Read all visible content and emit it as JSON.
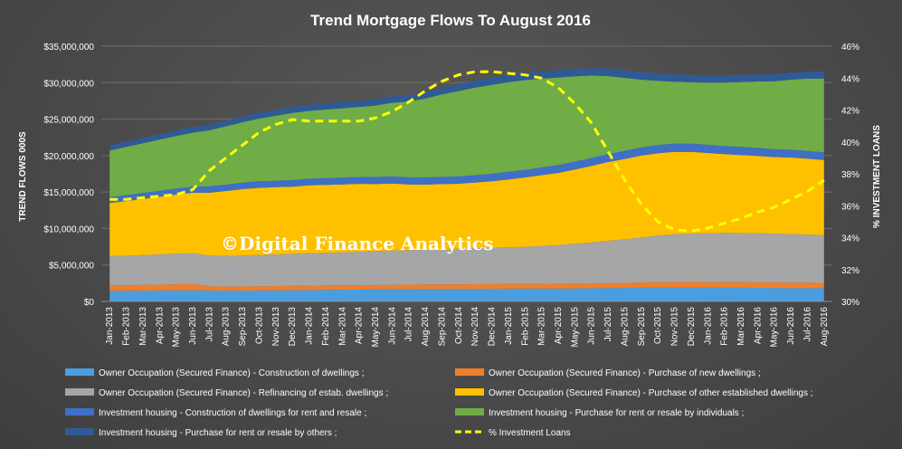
{
  "chart_data": {
    "type": "area",
    "title": "Trend Mortgage Flows To August 2016",
    "ylabel": "TREND FLOWS 000S",
    "ylabel_right": "% INVESTMENT LOANS",
    "ylim": [
      0,
      35000000
    ],
    "ylim_right": [
      30,
      46
    ],
    "yticks_left": [
      "$0",
      "$5,000,000",
      "$10,000,000",
      "$15,000,000",
      "$20,000,000",
      "$25,000,000",
      "$30,000,000",
      "$35,000,000"
    ],
    "yticks_right": [
      "30%",
      "32%",
      "34%",
      "36%",
      "38%",
      "40%",
      "42%",
      "44%",
      "46%"
    ],
    "stacked": true,
    "grid": true,
    "legend_position": "bottom",
    "watermark": "©Digital Finance Analytics",
    "categories": [
      "Jan-2013",
      "Feb-2013",
      "Mar-2013",
      "Apr-2013",
      "May-2013",
      "Jun-2013",
      "Jul-2013",
      "Aug-2013",
      "Sep-2013",
      "Oct-2013",
      "Nov-2013",
      "Dec-2013",
      "Jan-2014",
      "Feb-2014",
      "Mar-2014",
      "Apr-2014",
      "May-2014",
      "Jun-2014",
      "Jul-2014",
      "Aug-2014",
      "Sep-2014",
      "Oct-2014",
      "Nov-2014",
      "Dec-2014",
      "Jan-2015",
      "Feb-2015",
      "Mar-2015",
      "Apr-2015",
      "May-2015",
      "Jun-2015",
      "Jul-2015",
      "Aug-2015",
      "Sep-2015",
      "Oct-2015",
      "Nov-2015",
      "Dec-2015",
      "Jan-2016",
      "Feb-2016",
      "Mar-2016",
      "Apr-2016",
      "May-2016",
      "Jun-2016",
      "Jul-2016",
      "Aug-2016"
    ],
    "series": [
      {
        "name": "Owner Occupation (Secured Finance) - Construction of dwellings ;",
        "color": "#4a9ee0",
        "values": [
          1450000,
          1460000,
          1480000,
          1500000,
          1520000,
          1540000,
          1500000,
          1480000,
          1480000,
          1500000,
          1520000,
          1540000,
          1560000,
          1580000,
          1600000,
          1620000,
          1640000,
          1660000,
          1680000,
          1700000,
          1710000,
          1720000,
          1730000,
          1740000,
          1750000,
          1760000,
          1770000,
          1780000,
          1790000,
          1810000,
          1830000,
          1850000,
          1870000,
          1890000,
          1900000,
          1900000,
          1890000,
          1880000,
          1870000,
          1860000,
          1850000,
          1840000,
          1830000,
          1820000
        ]
      },
      {
        "name": "Owner Occupation (Secured Finance) - Purchase of new dwellings ;",
        "color": "#f07f2a",
        "values": [
          750000,
          760000,
          780000,
          800000,
          820000,
          840000,
          560000,
          560000,
          570000,
          580000,
          590000,
          590000,
          600000,
          600000,
          600000,
          600000,
          610000,
          610000,
          610000,
          620000,
          620000,
          620000,
          630000,
          630000,
          630000,
          640000,
          640000,
          650000,
          660000,
          670000,
          680000,
          690000,
          720000,
          740000,
          760000,
          770000,
          770000,
          760000,
          760000,
          750000,
          750000,
          740000,
          740000,
          730000
        ]
      },
      {
        "name": "Owner Occupation (Secured Finance) - Refinancing of estab. dwellings ;",
        "color": "#a6a6a6",
        "values": [
          4000000,
          4050000,
          4100000,
          4150000,
          4200000,
          4220000,
          4250000,
          4200000,
          4250000,
          4300000,
          4350000,
          4400000,
          4450000,
          4500000,
          4550000,
          4600000,
          4650000,
          4700000,
          4750000,
          4800000,
          4850000,
          4900000,
          4950000,
          5000000,
          5050000,
          5100000,
          5200000,
          5300000,
          5450000,
          5600000,
          5800000,
          6000000,
          6200000,
          6400000,
          6550000,
          6650000,
          6700000,
          6750000,
          6750000,
          6750000,
          6700000,
          6650000,
          6600000,
          6550000
        ]
      },
      {
        "name": "Owner Occupation (Secured Finance) - Purchase of other established dwellings ;",
        "color": "#ffc000",
        "values": [
          7300000,
          7500000,
          7700000,
          7900000,
          8100000,
          8300000,
          8600000,
          8900000,
          9100000,
          9200000,
          9200000,
          9200000,
          9300000,
          9300000,
          9300000,
          9300000,
          9200000,
          9200000,
          9000000,
          8900000,
          8900000,
          8900000,
          9000000,
          9100000,
          9300000,
          9500000,
          9700000,
          9900000,
          10200000,
          10500000,
          10800000,
          11000000,
          11200000,
          11300000,
          11300000,
          11200000,
          11000000,
          10800000,
          10700000,
          10600000,
          10500000,
          10500000,
          10400000,
          10300000
        ]
      },
      {
        "name": "Investment housing - Construction of dwellings for rent and resale ;",
        "color": "#3f6fc6",
        "values": [
          800000,
          810000,
          820000,
          830000,
          840000,
          850000,
          860000,
          870000,
          880000,
          890000,
          900000,
          910000,
          920000,
          930000,
          940000,
          950000,
          960000,
          970000,
          980000,
          990000,
          1000000,
          1010000,
          1020000,
          1030000,
          1040000,
          1050000,
          1060000,
          1070000,
          1080000,
          1090000,
          1100000,
          1110000,
          1120000,
          1130000,
          1130000,
          1130000,
          1130000,
          1120000,
          1110000,
          1100000,
          1090000,
          1080000,
          1070000,
          1060000
        ]
      },
      {
        "name": "Investment housing - Purchase for rent or resale by individuals ;",
        "color": "#70ad47",
        "values": [
          6400000,
          6600000,
          6800000,
          7000000,
          7200000,
          7400000,
          7700000,
          8000000,
          8300000,
          8600000,
          8900000,
          9200000,
          9300000,
          9400000,
          9500000,
          9600000,
          9800000,
          10100000,
          10400000,
          10800000,
          11300000,
          11700000,
          12000000,
          12200000,
          12300000,
          12300000,
          12200000,
          12000000,
          11700000,
          11300000,
          10700000,
          10000000,
          9300000,
          8800000,
          8500000,
          8400000,
          8500000,
          8700000,
          8900000,
          9100000,
          9300000,
          9600000,
          9900000,
          10100000
        ]
      },
      {
        "name": "Investment housing - Purchase for rent or resale by others ;",
        "color": "#2e5b96",
        "values": [
          700000,
          710000,
          720000,
          730000,
          740000,
          750000,
          760000,
          770000,
          780000,
          790000,
          800000,
          810000,
          820000,
          830000,
          840000,
          850000,
          860000,
          870000,
          880000,
          890000,
          900000,
          910000,
          920000,
          930000,
          940000,
          950000,
          960000,
          970000,
          980000,
          990000,
          1000000,
          1010000,
          1010000,
          1010000,
          1000000,
          990000,
          980000,
          970000,
          970000,
          970000,
          970000,
          970000,
          970000,
          970000
        ]
      }
    ],
    "line_series": {
      "name": "% Investment Loans",
      "color": "#ffff00",
      "axis": "right",
      "values": [
        36.4,
        36.4,
        36.5,
        36.6,
        36.7,
        37.0,
        38.2,
        39.0,
        39.8,
        40.6,
        41.1,
        41.4,
        41.3,
        41.3,
        41.3,
        41.3,
        41.5,
        41.9,
        42.5,
        43.2,
        43.8,
        44.2,
        44.4,
        44.4,
        44.3,
        44.2,
        44.0,
        43.4,
        42.4,
        41.2,
        39.4,
        37.6,
        36.1,
        35.0,
        34.5,
        34.4,
        34.6,
        34.9,
        35.2,
        35.6,
        35.9,
        36.4,
        36.9,
        37.6
      ]
    }
  }
}
